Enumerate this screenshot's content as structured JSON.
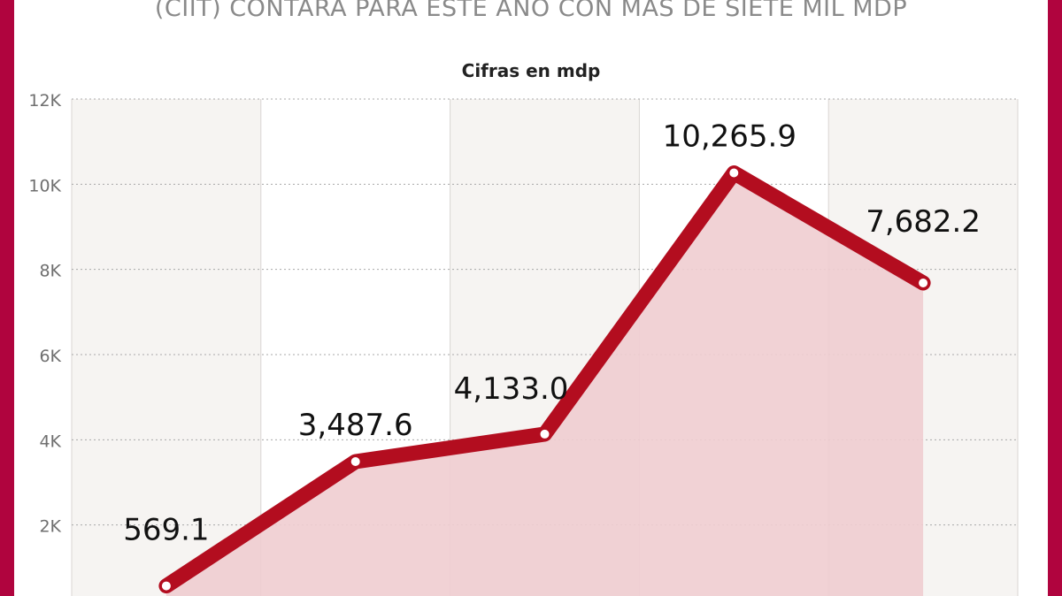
{
  "header": {
    "headline": "(CIIT) CONTARÁ PARA ESTE AÑO CON MÁS DE SIETE MIL MDP"
  },
  "chart_data": {
    "type": "area",
    "title": "Cifras en mdp",
    "x": [
      "",
      "",
      "",
      "",
      ""
    ],
    "values": [
      569.1,
      3487.6,
      4133.0,
      10265.9,
      7682.2
    ],
    "value_labels": [
      "569.1",
      "3,487.6",
      "4,133.0",
      "10,265.9",
      "7,682.2"
    ],
    "ylim": [
      0,
      12000
    ],
    "yticks": [
      2000,
      4000,
      6000,
      8000,
      10000,
      12000
    ],
    "ytick_labels": [
      "2K",
      "4K",
      "6K",
      "8K",
      "10K",
      "12K"
    ],
    "grid": true,
    "colors": {
      "line": "#b30d1f",
      "area": "#efcdd0",
      "band": "#f6f4f2",
      "frame": "#b0043e"
    }
  }
}
